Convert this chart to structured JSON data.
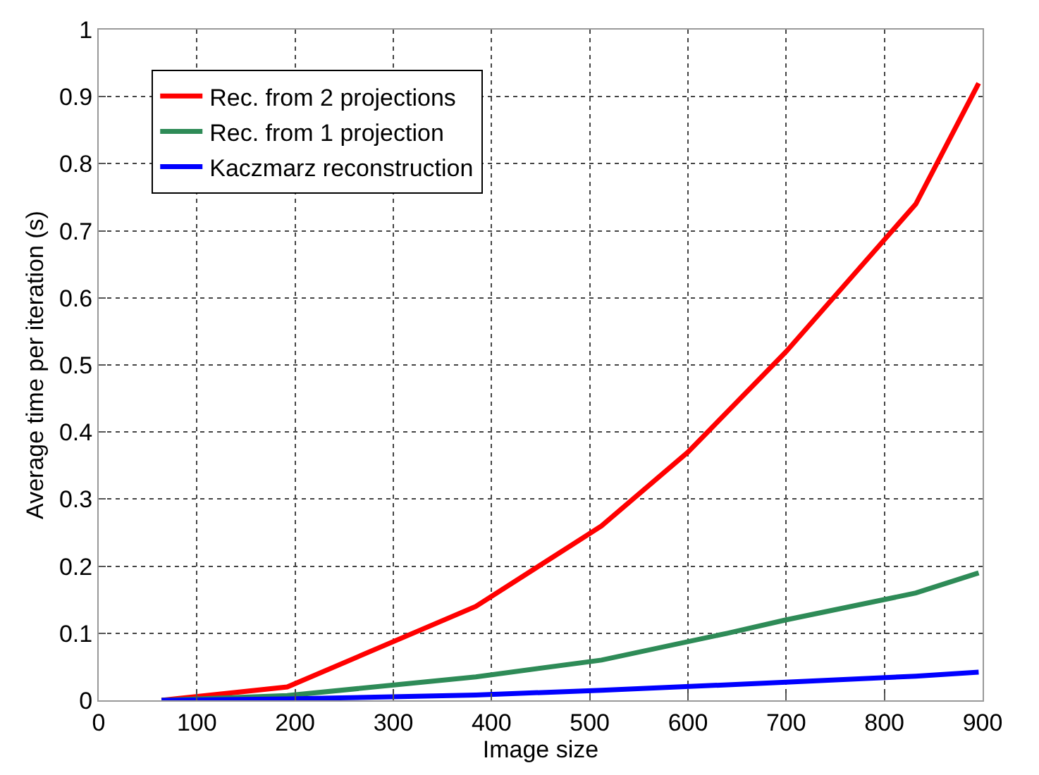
{
  "chart_data": {
    "type": "line",
    "xlabel": "Image size",
    "ylabel": "Average time per iteration (s)",
    "xlim": [
      0,
      900
    ],
    "xticks": [
      0,
      100,
      200,
      300,
      400,
      500,
      600,
      700,
      800,
      900
    ],
    "ylim": [
      0,
      1
    ],
    "yticks": [
      0,
      0.1,
      0.2,
      0.3,
      0.4,
      0.5,
      0.6,
      0.7,
      0.8,
      0.9,
      1
    ],
    "grid": true,
    "legend": "top left",
    "marker": "none",
    "line_style": "solid",
    "series": [
      {
        "name": "Rec. from 2 projections",
        "color": "#ff0000",
        "x": [
          64,
          192,
          384,
          512,
          600,
          700,
          832,
          896
        ],
        "values": [
          0,
          0.02,
          0.14,
          0.26,
          0.37,
          0.52,
          0.74,
          0.92
        ]
      },
      {
        "name": "Rec. from 1 projection",
        "color": "#2e8b57",
        "x": [
          64,
          192,
          384,
          512,
          640,
          700,
          832,
          896
        ],
        "values": [
          0,
          0.007,
          0.035,
          0.06,
          0.1,
          0.12,
          0.16,
          0.19
        ]
      },
      {
        "name": "Kaczmarz reconstruction",
        "color": "#0000ff",
        "x": [
          64,
          192,
          384,
          512,
          700,
          832,
          896
        ],
        "values": [
          0,
          0.002,
          0.008,
          0.015,
          0.027,
          0.036,
          0.042
        ]
      }
    ]
  }
}
